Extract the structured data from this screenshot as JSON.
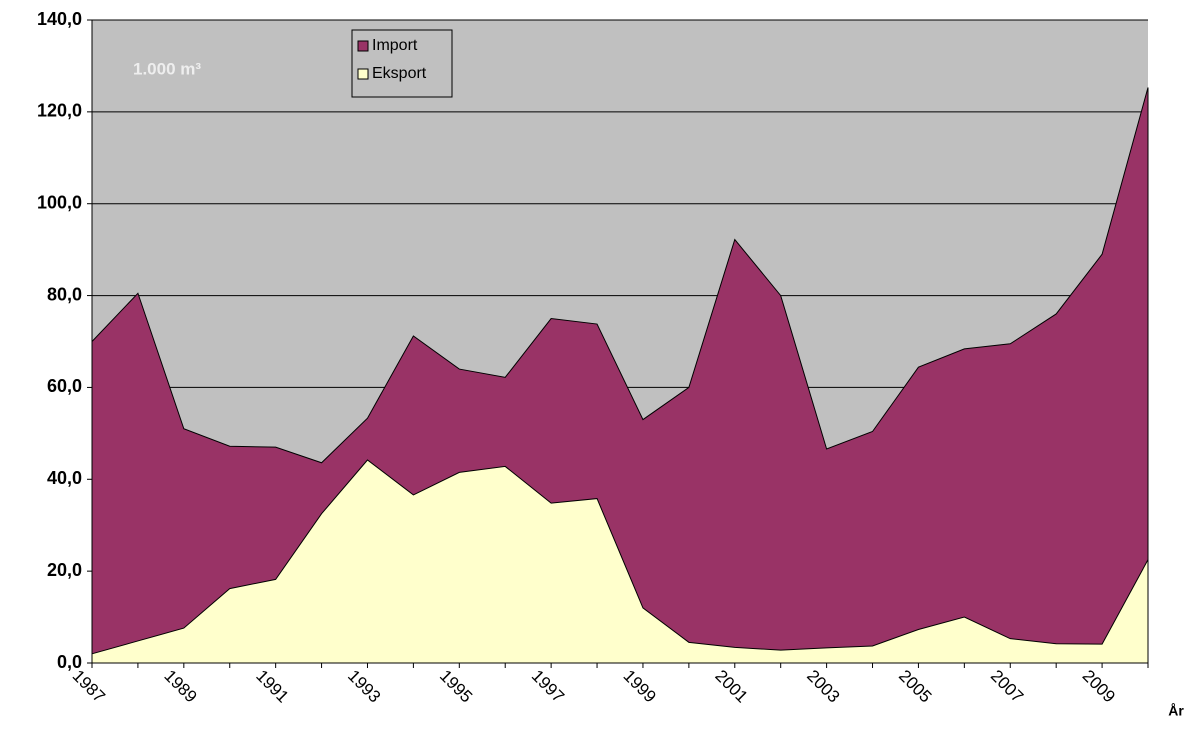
{
  "chart_data": {
    "type": "area",
    "annotation": "1.000 m³",
    "x_label": "År",
    "categories": [
      "1987",
      null,
      "1989",
      null,
      "1991",
      null,
      "1993",
      null,
      "1995",
      null,
      "1997",
      null,
      "1999",
      null,
      "2001",
      null,
      "2003",
      null,
      "2005",
      null,
      "2007",
      null,
      "2009",
      null
    ],
    "series": [
      {
        "name": "Import",
        "color": "#993366",
        "values": [
          70,
          80.5,
          51,
          47.2,
          47,
          43.6,
          53.3,
          71.2,
          64,
          62.2,
          75,
          73.8,
          53,
          60,
          92.2,
          80,
          46.6,
          50.4,
          64.4,
          68.4,
          69.5,
          76,
          89,
          125.3
        ]
      },
      {
        "name": "Eksport",
        "color": "#ffffcc",
        "values": [
          2,
          4.8,
          7.6,
          16.2,
          18.2,
          32.5,
          44.2,
          36.6,
          41.5,
          42.8,
          34.8,
          35.8,
          12,
          4.5,
          3.4,
          2.8,
          3.3,
          3.7,
          7.3,
          10,
          5.3,
          4.2,
          4.1,
          22.5
        ]
      }
    ],
    "ylim": [
      0,
      140
    ],
    "yticks": [
      {
        "value": 0,
        "label": "0,0"
      },
      {
        "value": 20,
        "label": "20,0"
      },
      {
        "value": 40,
        "label": "40,0"
      },
      {
        "value": 60,
        "label": "60,0"
      },
      {
        "value": 80,
        "label": "80,0"
      },
      {
        "value": 100,
        "label": "100,0"
      },
      {
        "value": 120,
        "label": "120,0"
      },
      {
        "value": 140,
        "label": "140,0"
      }
    ],
    "grid": true,
    "background": "#c0c0c0"
  }
}
